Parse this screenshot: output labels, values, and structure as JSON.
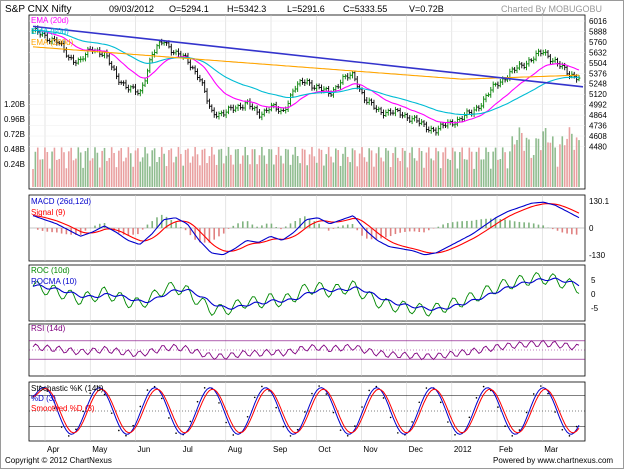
{
  "header": {
    "title": "S&P CNX Nifty",
    "date": "09/03/2012",
    "open": "O=5294.1",
    "high": "H=5342.3",
    "low": "L=5291.6",
    "close": "C=5333.55",
    "volume": "V=0.72B",
    "credit": "Charted By MOBUGOBU"
  },
  "footer": {
    "copyright": "Copyright © 2012 ChartNexus",
    "powered": "Powered by www.chartnexus.com"
  },
  "chart_data": [
    {
      "type": "line",
      "panel": "price",
      "series_note": "OHLC bars with EMA overlays and a drawn trendline",
      "legend": [
        {
          "name": "EMA (20d)",
          "color": "#ff00ff"
        },
        {
          "name": "EMA (50d)",
          "color": "#00bcd4"
        },
        {
          "name": "EMA (200d)",
          "color": "#ffa500"
        }
      ],
      "y_ticks": [
        "6016",
        "5888",
        "5760",
        "5632",
        "5504",
        "5376",
        "5248",
        "5120",
        "4992",
        "4864",
        "4736",
        "4608",
        "4480"
      ],
      "ylim": [
        4400,
        6016
      ],
      "x_months": [
        "Apr",
        "May",
        "Jun",
        "Jul",
        "Aug",
        "Sep",
        "Oct",
        "Nov",
        "Dec",
        "2012",
        "Feb",
        "Mar"
      ],
      "close_approx": [
        5900,
        5820,
        5780,
        5560,
        5530,
        5680,
        5620,
        5340,
        5200,
        5120,
        5600,
        5780,
        5620,
        5540,
        5330,
        4900,
        4880,
        4950,
        5020,
        4860,
        4980,
        4880,
        5200,
        5280,
        5200,
        5120,
        5300,
        5350,
        5050,
        4920,
        4900,
        4880,
        4820,
        4720,
        4680,
        4760,
        4820,
        4900,
        5050,
        5240,
        5350,
        5460,
        5550,
        5640,
        5520,
        5380,
        5330
      ],
      "trendline": {
        "from": 5950,
        "to": 5210,
        "color": "#3333cc"
      },
      "volume_ticks": [
        "1.20B",
        "0.96B",
        "0.72B",
        "0.48B",
        "0.24B"
      ]
    },
    {
      "type": "line",
      "panel": "MACD",
      "legend": [
        {
          "name": "MACD (26d,12d)",
          "color": "#0000cc"
        },
        {
          "name": "Signal (9)",
          "color": "#ff0000"
        }
      ],
      "y_ticks": [
        "130.1",
        "0",
        "-130"
      ],
      "macd_approx": [
        60,
        40,
        20,
        -10,
        -40,
        -20,
        10,
        -20,
        -60,
        -80,
        -30,
        40,
        50,
        20,
        -60,
        -120,
        -130,
        -100,
        -60,
        -70,
        -40,
        -60,
        -20,
        40,
        50,
        20,
        40,
        60,
        -10,
        -60,
        -90,
        -100,
        -110,
        -130,
        -120,
        -90,
        -60,
        -30,
        10,
        50,
        80,
        100,
        120,
        125,
        110,
        80,
        50
      ]
    },
    {
      "type": "line",
      "panel": "ROC",
      "legend": [
        {
          "name": "ROC (10d)",
          "color": "#008800"
        },
        {
          "name": "ROCMA (10)",
          "color": "#0000cc"
        }
      ],
      "y_ticks": [
        "5",
        "0",
        "-5"
      ]
    },
    {
      "type": "line",
      "panel": "RSI",
      "legend": [
        {
          "name": "RSI (14d)",
          "color": "#800080"
        }
      ],
      "levels": [
        70,
        30
      ]
    },
    {
      "type": "line",
      "panel": "Stochastic",
      "legend": [
        {
          "name": "Stochastic %K (14d)",
          "color": "#000000"
        },
        {
          "name": "%D (3)",
          "color": "#0000cc"
        },
        {
          "name": "Smoothed %D (3)",
          "color": "#ff0000"
        }
      ]
    }
  ]
}
